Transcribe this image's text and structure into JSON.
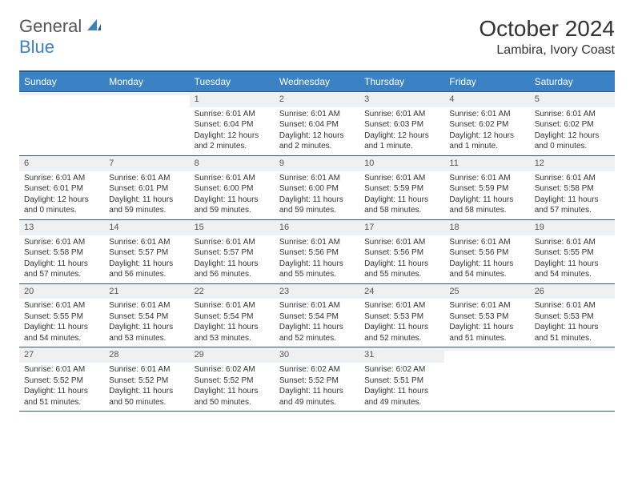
{
  "logo": {
    "general": "General",
    "blue": "Blue"
  },
  "title": "October 2024",
  "location": "Lambira, Ivory Coast",
  "colors": {
    "header_bg": "#3b82c4",
    "header_text": "#ffffff",
    "border": "#2a5a8a",
    "daynum_bg": "#eef0f2",
    "text": "#333333"
  },
  "day_names": [
    "Sunday",
    "Monday",
    "Tuesday",
    "Wednesday",
    "Thursday",
    "Friday",
    "Saturday"
  ],
  "weeks": [
    [
      {
        "n": "",
        "sr": "",
        "ss": "",
        "dl": ""
      },
      {
        "n": "",
        "sr": "",
        "ss": "",
        "dl": ""
      },
      {
        "n": "1",
        "sr": "Sunrise: 6:01 AM",
        "ss": "Sunset: 6:04 PM",
        "dl": "Daylight: 12 hours and 2 minutes."
      },
      {
        "n": "2",
        "sr": "Sunrise: 6:01 AM",
        "ss": "Sunset: 6:04 PM",
        "dl": "Daylight: 12 hours and 2 minutes."
      },
      {
        "n": "3",
        "sr": "Sunrise: 6:01 AM",
        "ss": "Sunset: 6:03 PM",
        "dl": "Daylight: 12 hours and 1 minute."
      },
      {
        "n": "4",
        "sr": "Sunrise: 6:01 AM",
        "ss": "Sunset: 6:02 PM",
        "dl": "Daylight: 12 hours and 1 minute."
      },
      {
        "n": "5",
        "sr": "Sunrise: 6:01 AM",
        "ss": "Sunset: 6:02 PM",
        "dl": "Daylight: 12 hours and 0 minutes."
      }
    ],
    [
      {
        "n": "6",
        "sr": "Sunrise: 6:01 AM",
        "ss": "Sunset: 6:01 PM",
        "dl": "Daylight: 12 hours and 0 minutes."
      },
      {
        "n": "7",
        "sr": "Sunrise: 6:01 AM",
        "ss": "Sunset: 6:01 PM",
        "dl": "Daylight: 11 hours and 59 minutes."
      },
      {
        "n": "8",
        "sr": "Sunrise: 6:01 AM",
        "ss": "Sunset: 6:00 PM",
        "dl": "Daylight: 11 hours and 59 minutes."
      },
      {
        "n": "9",
        "sr": "Sunrise: 6:01 AM",
        "ss": "Sunset: 6:00 PM",
        "dl": "Daylight: 11 hours and 59 minutes."
      },
      {
        "n": "10",
        "sr": "Sunrise: 6:01 AM",
        "ss": "Sunset: 5:59 PM",
        "dl": "Daylight: 11 hours and 58 minutes."
      },
      {
        "n": "11",
        "sr": "Sunrise: 6:01 AM",
        "ss": "Sunset: 5:59 PM",
        "dl": "Daylight: 11 hours and 58 minutes."
      },
      {
        "n": "12",
        "sr": "Sunrise: 6:01 AM",
        "ss": "Sunset: 5:58 PM",
        "dl": "Daylight: 11 hours and 57 minutes."
      }
    ],
    [
      {
        "n": "13",
        "sr": "Sunrise: 6:01 AM",
        "ss": "Sunset: 5:58 PM",
        "dl": "Daylight: 11 hours and 57 minutes."
      },
      {
        "n": "14",
        "sr": "Sunrise: 6:01 AM",
        "ss": "Sunset: 5:57 PM",
        "dl": "Daylight: 11 hours and 56 minutes."
      },
      {
        "n": "15",
        "sr": "Sunrise: 6:01 AM",
        "ss": "Sunset: 5:57 PM",
        "dl": "Daylight: 11 hours and 56 minutes."
      },
      {
        "n": "16",
        "sr": "Sunrise: 6:01 AM",
        "ss": "Sunset: 5:56 PM",
        "dl": "Daylight: 11 hours and 55 minutes."
      },
      {
        "n": "17",
        "sr": "Sunrise: 6:01 AM",
        "ss": "Sunset: 5:56 PM",
        "dl": "Daylight: 11 hours and 55 minutes."
      },
      {
        "n": "18",
        "sr": "Sunrise: 6:01 AM",
        "ss": "Sunset: 5:56 PM",
        "dl": "Daylight: 11 hours and 54 minutes."
      },
      {
        "n": "19",
        "sr": "Sunrise: 6:01 AM",
        "ss": "Sunset: 5:55 PM",
        "dl": "Daylight: 11 hours and 54 minutes."
      }
    ],
    [
      {
        "n": "20",
        "sr": "Sunrise: 6:01 AM",
        "ss": "Sunset: 5:55 PM",
        "dl": "Daylight: 11 hours and 54 minutes."
      },
      {
        "n": "21",
        "sr": "Sunrise: 6:01 AM",
        "ss": "Sunset: 5:54 PM",
        "dl": "Daylight: 11 hours and 53 minutes."
      },
      {
        "n": "22",
        "sr": "Sunrise: 6:01 AM",
        "ss": "Sunset: 5:54 PM",
        "dl": "Daylight: 11 hours and 53 minutes."
      },
      {
        "n": "23",
        "sr": "Sunrise: 6:01 AM",
        "ss": "Sunset: 5:54 PM",
        "dl": "Daylight: 11 hours and 52 minutes."
      },
      {
        "n": "24",
        "sr": "Sunrise: 6:01 AM",
        "ss": "Sunset: 5:53 PM",
        "dl": "Daylight: 11 hours and 52 minutes."
      },
      {
        "n": "25",
        "sr": "Sunrise: 6:01 AM",
        "ss": "Sunset: 5:53 PM",
        "dl": "Daylight: 11 hours and 51 minutes."
      },
      {
        "n": "26",
        "sr": "Sunrise: 6:01 AM",
        "ss": "Sunset: 5:53 PM",
        "dl": "Daylight: 11 hours and 51 minutes."
      }
    ],
    [
      {
        "n": "27",
        "sr": "Sunrise: 6:01 AM",
        "ss": "Sunset: 5:52 PM",
        "dl": "Daylight: 11 hours and 51 minutes."
      },
      {
        "n": "28",
        "sr": "Sunrise: 6:01 AM",
        "ss": "Sunset: 5:52 PM",
        "dl": "Daylight: 11 hours and 50 minutes."
      },
      {
        "n": "29",
        "sr": "Sunrise: 6:02 AM",
        "ss": "Sunset: 5:52 PM",
        "dl": "Daylight: 11 hours and 50 minutes."
      },
      {
        "n": "30",
        "sr": "Sunrise: 6:02 AM",
        "ss": "Sunset: 5:52 PM",
        "dl": "Daylight: 11 hours and 49 minutes."
      },
      {
        "n": "31",
        "sr": "Sunrise: 6:02 AM",
        "ss": "Sunset: 5:51 PM",
        "dl": "Daylight: 11 hours and 49 minutes."
      },
      {
        "n": "",
        "sr": "",
        "ss": "",
        "dl": ""
      },
      {
        "n": "",
        "sr": "",
        "ss": "",
        "dl": ""
      }
    ]
  ]
}
